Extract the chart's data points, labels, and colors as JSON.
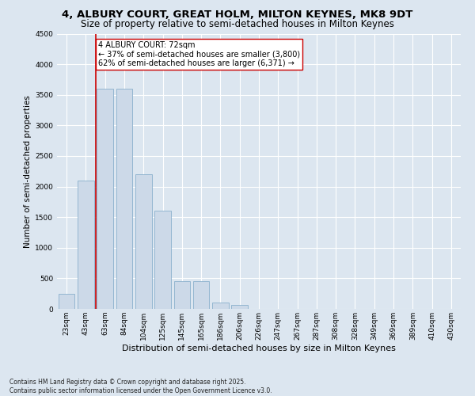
{
  "title": "4, ALBURY COURT, GREAT HOLM, MILTON KEYNES, MK8 9DT",
  "subtitle": "Size of property relative to semi-detached houses in Milton Keynes",
  "xlabel": "Distribution of semi-detached houses by size in Milton Keynes",
  "ylabel": "Number of semi-detached properties",
  "categories": [
    "23sqm",
    "43sqm",
    "63sqm",
    "84sqm",
    "104sqm",
    "125sqm",
    "145sqm",
    "165sqm",
    "186sqm",
    "206sqm",
    "226sqm",
    "247sqm",
    "267sqm",
    "287sqm",
    "308sqm",
    "328sqm",
    "349sqm",
    "369sqm",
    "389sqm",
    "410sqm",
    "430sqm"
  ],
  "values": [
    250,
    2100,
    3600,
    3600,
    2200,
    1600,
    450,
    450,
    100,
    60,
    0,
    0,
    0,
    0,
    0,
    0,
    0,
    0,
    0,
    0,
    0
  ],
  "bar_color": "#ccd9e8",
  "bar_edge_color": "#8ab0cc",
  "property_line_index": 2,
  "property_line_color": "#cc0000",
  "annotation_line1": "4 ALBURY COURT: 72sqm",
  "annotation_line2": "← 37% of semi-detached houses are smaller (3,800)",
  "annotation_line3": "62% of semi-detached houses are larger (6,371) →",
  "annotation_box_color": "#ffffff",
  "annotation_box_edge": "#cc0000",
  "ylim": [
    0,
    4500
  ],
  "yticks": [
    0,
    500,
    1000,
    1500,
    2000,
    2500,
    3000,
    3500,
    4000,
    4500
  ],
  "background_color": "#dce6f0",
  "grid_color": "#ffffff",
  "footer": "Contains HM Land Registry data © Crown copyright and database right 2025.\nContains public sector information licensed under the Open Government Licence v3.0.",
  "title_fontsize": 9.5,
  "subtitle_fontsize": 8.5,
  "xlabel_fontsize": 8,
  "ylabel_fontsize": 7.5,
  "tick_fontsize": 6.5,
  "annotation_fontsize": 7,
  "footer_fontsize": 5.5
}
